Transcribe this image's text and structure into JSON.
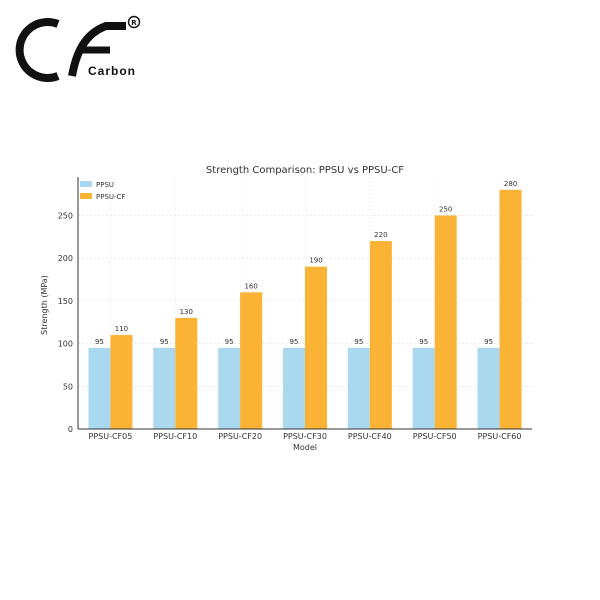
{
  "logo": {
    "brand_text": "Carbon",
    "mark_text": "CF",
    "registered_symbol": "®"
  },
  "chart_data": {
    "type": "bar",
    "title": "Strength Comparison: PPSU vs PPSU-CF",
    "xlabel": "Model",
    "ylabel": "Strength (MPa)",
    "categories": [
      "PPSU-CF05",
      "PPSU-CF10",
      "PPSU-CF20",
      "PPSU-CF30",
      "PPSU-CF40",
      "PPSU-CF50",
      "PPSU-CF60"
    ],
    "series": [
      {
        "name": "PPSU",
        "values": [
          95,
          95,
          95,
          95,
          95,
          95,
          95
        ],
        "color": "#a9d8ef"
      },
      {
        "name": "PPSU-CF",
        "values": [
          110,
          130,
          160,
          190,
          220,
          250,
          280
        ],
        "color": "#fbb335"
      }
    ],
    "ylim": [
      0,
      295
    ],
    "yticks": [
      0,
      50,
      100,
      150,
      200,
      250
    ],
    "grid": true,
    "legend_position": "top-left"
  }
}
